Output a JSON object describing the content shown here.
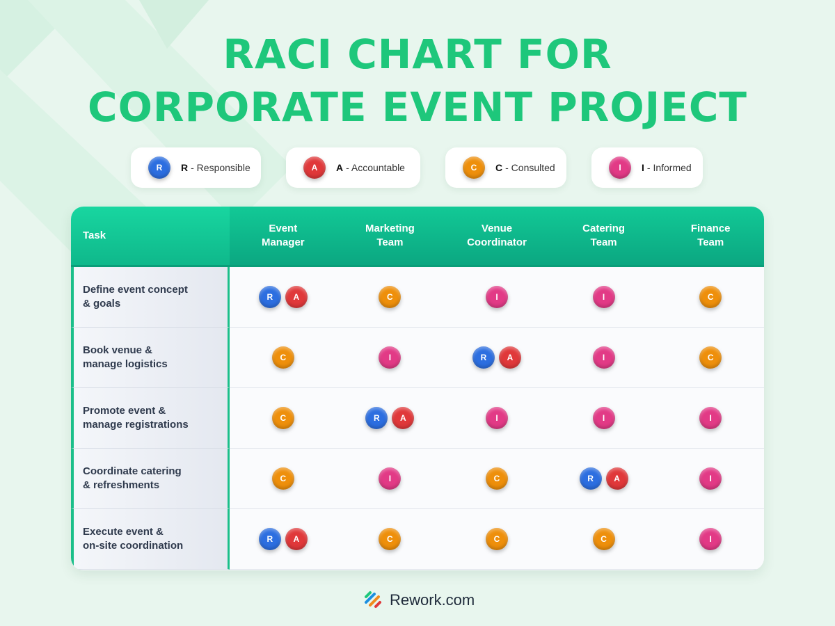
{
  "title": [
    "RACI CHART FOR",
    "CORPORATE EVENT PROJECT"
  ],
  "legend": [
    {
      "letter": "R",
      "text": "- Responsible",
      "color": "#2c6ee0"
    },
    {
      "letter": "A",
      "text": "- Accountable",
      "color": "#e0383a"
    },
    {
      "letter": "C",
      "text": "- Consulted",
      "color": "#ee8f0b"
    },
    {
      "letter": "I",
      "text": "- Informed",
      "color": "#e23a86"
    }
  ],
  "table": {
    "header": [
      [
        "Task"
      ],
      [
        "Event",
        "Manager"
      ],
      [
        "Marketing",
        "Team"
      ],
      [
        "Venue",
        "Coordinator"
      ],
      [
        "Catering",
        "Team"
      ],
      [
        "Finance",
        "Team"
      ]
    ],
    "rows": [
      {
        "task": [
          "Define event concept",
          "& goals"
        ],
        "cells": [
          [
            "R",
            "A"
          ],
          [
            "C"
          ],
          [
            "I"
          ],
          [
            "I"
          ],
          [
            "C"
          ]
        ]
      },
      {
        "task": [
          "Book venue &",
          "manage logistics"
        ],
        "cells": [
          [
            "C"
          ],
          [
            "I"
          ],
          [
            "R",
            "A"
          ],
          [
            "I"
          ],
          [
            "C"
          ]
        ]
      },
      {
        "task": [
          "Promote event &",
          "manage registrations"
        ],
        "cells": [
          [
            "C"
          ],
          [
            "R",
            "A"
          ],
          [
            "I"
          ],
          [
            "I"
          ],
          [
            "I"
          ]
        ]
      },
      {
        "task": [
          "Coordinate catering",
          "& refreshments"
        ],
        "cells": [
          [
            "C"
          ],
          [
            "I"
          ],
          [
            "C"
          ],
          [
            "R",
            "A"
          ],
          [
            "I"
          ]
        ]
      },
      {
        "task": [
          "Execute event &",
          "on-site coordination"
        ],
        "cells": [
          [
            "R",
            "A"
          ],
          [
            "C"
          ],
          [
            "C"
          ],
          [
            "C"
          ],
          [
            "I"
          ]
        ]
      }
    ]
  },
  "footer": "Rework.com"
}
